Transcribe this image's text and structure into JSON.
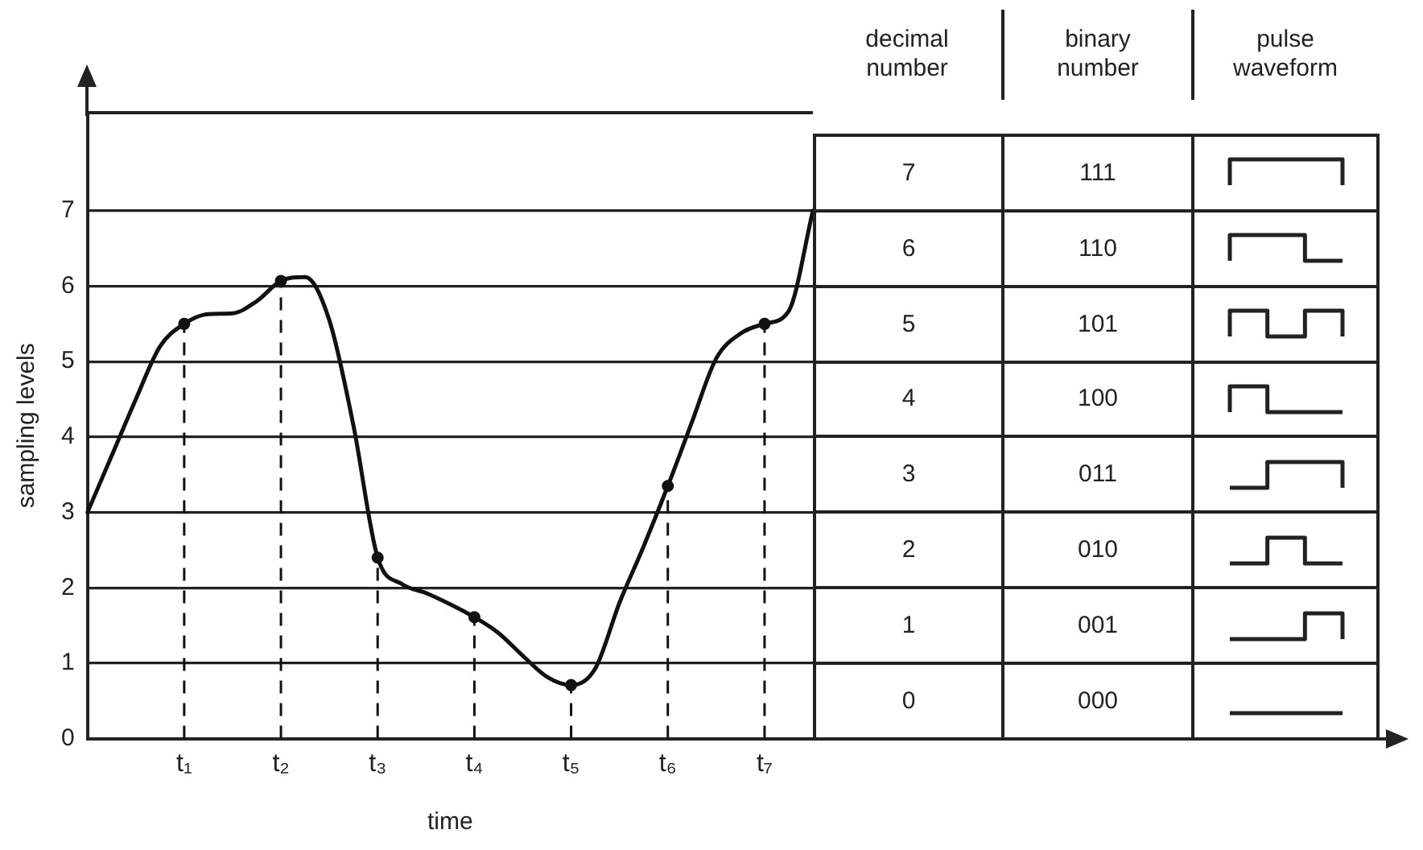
{
  "chart_data": [
    {
      "type": "line",
      "xlabel": "time",
      "ylabel": "sampling levels",
      "categories": [
        null,
        null,
        null,
        null,
        "t₁",
        null,
        null,
        null,
        "t₂",
        null,
        null,
        null,
        "t₃",
        null,
        null,
        null,
        "t₄",
        null,
        null,
        null,
        "t₅",
        null,
        null,
        null,
        "t₆",
        null,
        null,
        null,
        "t₇",
        null,
        null
      ],
      "ylim": [
        0,
        8.3
      ],
      "yticks": [
        0,
        1,
        2,
        3,
        4,
        5,
        6,
        7
      ],
      "grid": "y",
      "series": [
        {
          "color": "#111111",
          "values": [
            3.0,
            3.75,
            4.5,
            5.2,
            5.5,
            5.63,
            5.64,
            5.8,
            6.07,
            6.12,
            5.55,
            4.15,
            2.4,
            2.05,
            1.93,
            1.78,
            1.61,
            1.4,
            1.1,
            0.82,
            0.71,
            0.93,
            1.8,
            2.55,
            3.35,
            4.2,
            5.04,
            5.37,
            5.5,
            5.67,
            7.0
          ]
        },
        {
          "type": "lollipop",
          "color": "#111111",
          "line_style": "dashed",
          "marker": "circle",
          "values": [
            null,
            null,
            null,
            null,
            5.5,
            null,
            null,
            null,
            6.07,
            null,
            null,
            null,
            2.4,
            null,
            null,
            null,
            1.61,
            null,
            null,
            null,
            0.71,
            null,
            null,
            null,
            3.35,
            null,
            null,
            null,
            5.5,
            null,
            null
          ]
        }
      ]
    },
    {
      "type": "heatmap",
      "ylabel": "decimal number",
      "categories": [
        "binary number",
        "pulse waveform"
      ],
      "y_categories": [
        "7",
        "6",
        "5",
        "4",
        "3",
        "2",
        "1",
        "0"
      ],
      "cells": [
        [
          null,
          null
        ],
        [
          null,
          null
        ],
        [
          null,
          null
        ],
        [
          null,
          null
        ],
        [
          null,
          null
        ],
        [
          null,
          null
        ],
        [
          null,
          null
        ],
        [
          null,
          null
        ]
      ],
      "cell_labels": [
        [
          "111",
          null
        ],
        [
          "110",
          null
        ],
        [
          "101",
          null
        ],
        [
          "100",
          null
        ],
        [
          "011",
          null
        ],
        [
          "010",
          null
        ],
        [
          "001",
          null
        ],
        [
          "000",
          null
        ]
      ]
    }
  ]
}
